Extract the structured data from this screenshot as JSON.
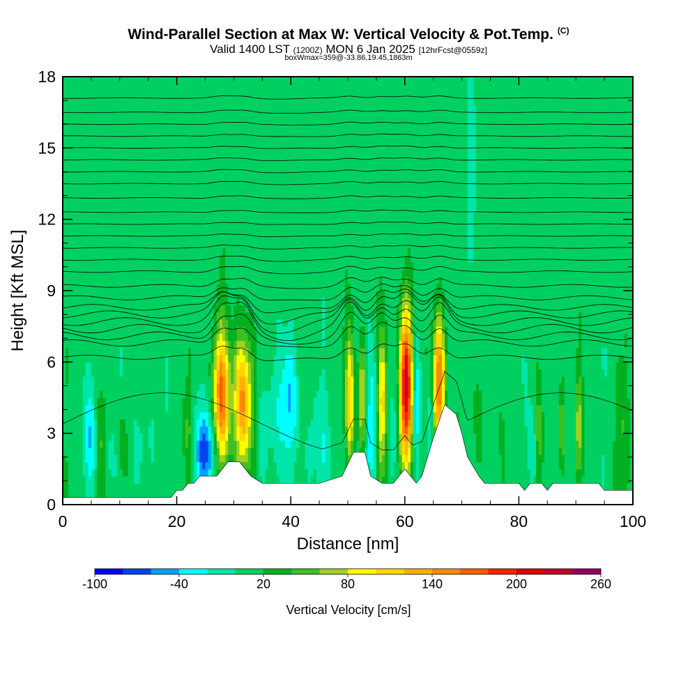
{
  "header": {
    "title": "Wind-Parallel Section at Max W: Vertical Velocity & Pot.Temp.",
    "copyright": "(C)",
    "valid_prefix": "Valid 1400 LST",
    "valid_utc": "(1200Z)",
    "valid_date": "MON 6 Jan 2025",
    "forecast": "[12hrFcst@0559z]",
    "box_info": "boxWmax=359@-33.86,19.45,1863m"
  },
  "chart_data": {
    "type": "heatmap",
    "title": "Wind-Parallel Section at Max W: Vertical Velocity & Pot.Temp.",
    "xlabel": "Distance [nm]",
    "ylabel": "Height [Kft MSL]",
    "xlim": [
      0,
      100
    ],
    "ylim": [
      0,
      18
    ],
    "x_ticks": [
      0,
      20,
      40,
      60,
      80,
      100
    ],
    "y_ticks": [
      0,
      3,
      6,
      9,
      12,
      15,
      18
    ],
    "background_w": 10,
    "terrain": [
      [
        0,
        0.3
      ],
      [
        19,
        0.3
      ],
      [
        20,
        0.6
      ],
      [
        21,
        0.6
      ],
      [
        22,
        0.9
      ],
      [
        23,
        0.9
      ],
      [
        24,
        1.2
      ],
      [
        27,
        1.2
      ],
      [
        29,
        1.8
      ],
      [
        31,
        1.8
      ],
      [
        33,
        1.2
      ],
      [
        35,
        0.9
      ],
      [
        45,
        0.9
      ],
      [
        49,
        1.2
      ],
      [
        51,
        2.2
      ],
      [
        53,
        2.2
      ],
      [
        54,
        1.2
      ],
      [
        56,
        0.9
      ],
      [
        58,
        0.9
      ],
      [
        59,
        1.2
      ],
      [
        60,
        1.5
      ],
      [
        61,
        1.2
      ],
      [
        62,
        0.9
      ],
      [
        63,
        1.2
      ],
      [
        64,
        2.0
      ],
      [
        65,
        2.8
      ],
      [
        66,
        3.5
      ],
      [
        67,
        4.2
      ],
      [
        69,
        3.8
      ],
      [
        70,
        3.0
      ],
      [
        71,
        2.0
      ],
      [
        73,
        1.2
      ],
      [
        74,
        0.9
      ],
      [
        80,
        0.9
      ],
      [
        81,
        0.6
      ],
      [
        82,
        0.9
      ],
      [
        84,
        0.9
      ],
      [
        85,
        0.6
      ],
      [
        86,
        0.9
      ],
      [
        94,
        0.9
      ],
      [
        95,
        0.6
      ],
      [
        100,
        0.6
      ]
    ],
    "updrafts": [
      {
        "x": 27.8,
        "z": 4.6,
        "sx": 1.0,
        "sz": 1.9,
        "peak": 150
      },
      {
        "x": 31.6,
        "z": 4.3,
        "sx": 1.1,
        "sz": 2.0,
        "peak": 140
      },
      {
        "x": 50.4,
        "z": 4.5,
        "sx": 0.55,
        "sz": 1.9,
        "peak": 100
      },
      {
        "x": 52.5,
        "z": 4.5,
        "sx": 0.45,
        "sz": 1.7,
        "peak": 80
      },
      {
        "x": 56.0,
        "z": 4.3,
        "sx": 0.55,
        "sz": 2.0,
        "peak": 100
      },
      {
        "x": 60.2,
        "z": 4.9,
        "sx": 0.8,
        "sz": 2.4,
        "peak": 220
      },
      {
        "x": 66.0,
        "z": 5.2,
        "sx": 0.75,
        "sz": 1.9,
        "peak": 160
      },
      {
        "x": 6.8,
        "z": 2.4,
        "sx": 0.9,
        "sz": 1.6,
        "peak": 30
      },
      {
        "x": 10.5,
        "z": 2.4,
        "sx": 0.7,
        "sz": 1.3,
        "peak": 30
      },
      {
        "x": 83.5,
        "z": 3.0,
        "sx": 0.4,
        "sz": 1.5,
        "peak": 45
      },
      {
        "x": 87.5,
        "z": 3.2,
        "sx": 0.4,
        "sz": 1.5,
        "peak": 50
      },
      {
        "x": 90.5,
        "z": 3.2,
        "sx": 0.4,
        "sz": 1.5,
        "peak": 60
      },
      {
        "x": 22.0,
        "z": 3.2,
        "sx": 0.5,
        "sz": 1.5,
        "peak": 30
      },
      {
        "x": 73.0,
        "z": 3.5,
        "sx": 0.5,
        "sz": 1.5,
        "peak": 35
      },
      {
        "x": 98.0,
        "z": 3.0,
        "sx": 0.8,
        "sz": 2.0,
        "peak": 25
      }
    ],
    "downdrafts": [
      {
        "x": 25.0,
        "z": 2.3,
        "sx": 1.1,
        "sz": 1.2,
        "peak": -85
      },
      {
        "x": 5.0,
        "z": 2.8,
        "sx": 0.9,
        "sz": 1.6,
        "peak": -45
      },
      {
        "x": 8.5,
        "z": 2.0,
        "sx": 0.8,
        "sz": 1.2,
        "peak": -25
      },
      {
        "x": 39.5,
        "z": 4.3,
        "sx": 1.3,
        "sz": 1.7,
        "peak": -50
      },
      {
        "x": 35.5,
        "z": 3.2,
        "sx": 1.0,
        "sz": 1.6,
        "peak": -30
      },
      {
        "x": 45.0,
        "z": 2.5,
        "sx": 2.0,
        "sz": 1.6,
        "peak": -20
      },
      {
        "x": 54.3,
        "z": 3.5,
        "sx": 0.7,
        "sz": 2.0,
        "peak": -40
      },
      {
        "x": 58.0,
        "z": 3.3,
        "sx": 0.5,
        "sz": 1.6,
        "peak": -30
      },
      {
        "x": 62.0,
        "z": 4.2,
        "sx": 0.6,
        "sz": 2.0,
        "peak": -50
      },
      {
        "x": 64.5,
        "z": 3.8,
        "sx": 0.45,
        "sz": 1.7,
        "peak": -30
      },
      {
        "x": 71.5,
        "z": 14.5,
        "sx": 0.5,
        "sz": 3.5,
        "peak": -35
      },
      {
        "x": 82.5,
        "z": 2.3,
        "sx": 0.5,
        "sz": 1.3,
        "peak": -30
      },
      {
        "x": 14.0,
        "z": 2.5,
        "sx": 1.2,
        "sz": 1.3,
        "peak": -20
      }
    ],
    "theta_levels": [
      {
        "z": 6.2,
        "amp": 0.3
      },
      {
        "z": 6.8,
        "amp": 0.45
      },
      {
        "z": 7.1,
        "amp": 0.55
      },
      {
        "z": 7.4,
        "amp": 0.6
      },
      {
        "z": 7.7,
        "amp": 0.55
      },
      {
        "z": 8.0,
        "amp": 0.5
      },
      {
        "z": 8.3,
        "amp": 0.4
      },
      {
        "z": 8.7,
        "amp": 0.3
      },
      {
        "z": 9.2,
        "amp": 0.2
      },
      {
        "z": 9.8,
        "amp": 0.12
      },
      {
        "z": 10.3,
        "amp": 0.08
      },
      {
        "z": 10.8,
        "amp": 0.06
      },
      {
        "z": 11.3,
        "amp": 0.05
      },
      {
        "z": 11.8,
        "amp": 0.05
      },
      {
        "z": 12.3,
        "amp": 0.05
      },
      {
        "z": 12.9,
        "amp": 0.05
      },
      {
        "z": 13.5,
        "amp": 0.05
      },
      {
        "z": 14.0,
        "amp": 0.05
      },
      {
        "z": 14.5,
        "amp": 0.05
      },
      {
        "z": 15.0,
        "amp": 0.05
      },
      {
        "z": 15.5,
        "amp": 0.05
      },
      {
        "z": 16.0,
        "amp": 0.05
      },
      {
        "z": 16.5,
        "amp": 0.05
      },
      {
        "z": 17.1,
        "amp": 0.05
      }
    ],
    "colorbar": {
      "title": "Vertical Velocity [cm/s]",
      "bounds": [
        -100,
        260
      ],
      "step": 20,
      "labels": [
        "-100",
        "-40",
        "20",
        "80",
        "140",
        "200",
        "260"
      ],
      "colors": [
        "#0000ee",
        "#0044ee",
        "#00a0ff",
        "#00ffff",
        "#00e6aa",
        "#00d060",
        "#00b020",
        "#40c020",
        "#a0d020",
        "#ffff00",
        "#ffd800",
        "#ffb000",
        "#ff8800",
        "#ff5a00",
        "#ff2000",
        "#e00000",
        "#c00030",
        "#900060"
      ]
    }
  }
}
